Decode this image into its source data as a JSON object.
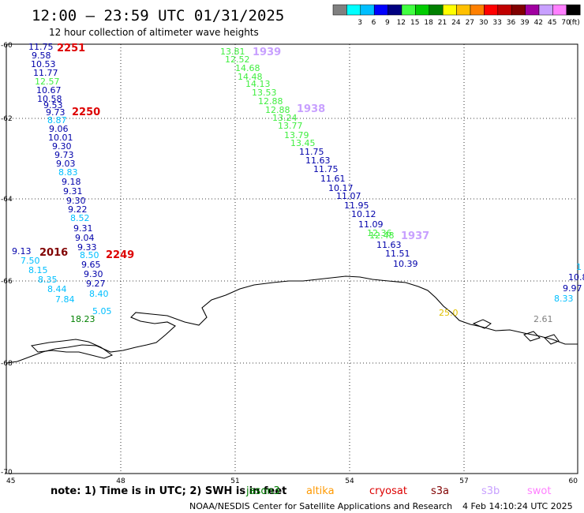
{
  "header": {
    "title": "12:00 — 23:59 UTC 01/31/2025",
    "subtitle": "12 hour collection of altimeter wave heights"
  },
  "legend": {
    "unit": "(ft)",
    "swatches": [
      {
        "label": "",
        "color": "#808080"
      },
      {
        "label": "3",
        "color": "#00ffff"
      },
      {
        "label": "6",
        "color": "#00bfff"
      },
      {
        "label": "9",
        "color": "#0000ff"
      },
      {
        "label": "12",
        "color": "#000080"
      },
      {
        "label": "15",
        "color": "#40ff40"
      },
      {
        "label": "18",
        "color": "#00cc00"
      },
      {
        "label": "21",
        "color": "#008000"
      },
      {
        "label": "24",
        "color": "#ffff00"
      },
      {
        "label": "27",
        "color": "#ffc000"
      },
      {
        "label": "30",
        "color": "#ff8000"
      },
      {
        "label": "33",
        "color": "#ff0000"
      },
      {
        "label": "36",
        "color": "#c00000"
      },
      {
        "label": "39",
        "color": "#800000"
      },
      {
        "label": "42",
        "color": "#a000a0"
      },
      {
        "label": "45",
        "color": "#c8a0ff"
      },
      {
        "label": "70",
        "color": "#ff80ff"
      },
      {
        "label": "",
        "color": "#000000"
      }
    ]
  },
  "axes": {
    "lon_ticks": [
      "45",
      "48",
      "51",
      "54",
      "57",
      "60"
    ],
    "lat_ticks": [
      "-60",
      "-62",
      "-64",
      "-66",
      "-68",
      "-70"
    ]
  },
  "track_labels": [
    {
      "text": "2251",
      "color": "#dd0000"
    },
    {
      "text": "2250",
      "color": "#dd0000"
    },
    {
      "text": "2249",
      "color": "#dd0000"
    },
    {
      "text": "2016",
      "color": "#800000"
    },
    {
      "text": "1939",
      "color": "#c8a0ff"
    },
    {
      "text": "1938",
      "color": "#c8a0ff"
    },
    {
      "text": "1937",
      "color": "#c8a0ff"
    }
  ],
  "wave_values": [
    "11.75",
    "9.58",
    "10.53",
    "11.77",
    "12.57",
    "10.67",
    "10.58",
    "9.53",
    "9.73",
    "8.87",
    "9.06",
    "10.01",
    "9.30",
    "9.73",
    "9.03",
    "8.83",
    "9.18",
    "9.31",
    "9.30",
    "9.22",
    "8.52",
    "9.31",
    "9.04",
    "9.33",
    "8.50",
    "9.65",
    "9.30",
    "9.27",
    "8.40",
    "5.05",
    "18.23",
    "9.13",
    "7.50",
    "8.15",
    "8.35",
    "8.44",
    "7.84",
    "13.81",
    "12.52",
    "14.68",
    "14.48",
    "14.13",
    "13.53",
    "12.88",
    "12.88",
    "13.24",
    "13.77",
    "13.79",
    "13.45",
    "11.75",
    "11.63",
    "11.75",
    "11.61",
    "10.17",
    "11.07",
    "11.95",
    "10.12",
    "11.09",
    "12.36",
    "12.48",
    "11.63",
    "11.51",
    "10.39",
    "1",
    "10.8",
    "9.97",
    "8.33",
    "25.0",
    "2.61"
  ],
  "footer": {
    "note": "note: 1) Time is in UTC; 2) SWH is in feet",
    "satellites": [
      {
        "name": "jason3",
        "color": "#008000"
      },
      {
        "name": "altika",
        "color": "#ff9900"
      },
      {
        "name": "cryosat",
        "color": "#dd0000"
      },
      {
        "name": "s3a",
        "color": "#800000"
      },
      {
        "name": "s3b",
        "color": "#c8a0ff"
      },
      {
        "name": "swot",
        "color": "#ff80ff"
      }
    ],
    "credit": "NOAA/NESDIS Center for Satellite Applications and Research",
    "timestamp": "4 Feb 14:10:24 UTC 2025"
  }
}
